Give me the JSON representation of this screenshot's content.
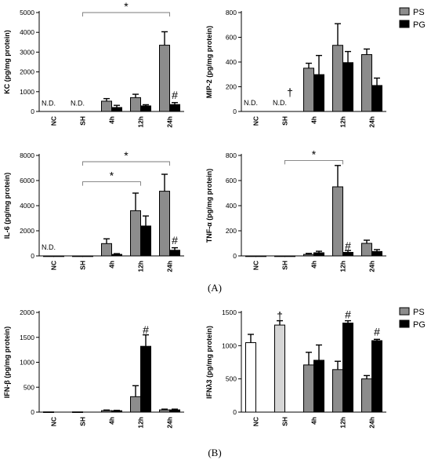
{
  "panel_labels": [
    "(A)",
    "(B)"
  ],
  "colors": {
    "PS": "#8c8c8c",
    "PG": "#000000",
    "NC": "#ffffff",
    "SH": "#d6d6d6"
  },
  "chart_data": [
    {
      "type": "bar",
      "id": "kc",
      "categories": [
        "NC",
        "SH",
        "4h",
        "12h",
        "24h"
      ],
      "ylabel": "KC (pg/mg protein)",
      "ylim": [
        0,
        5000
      ],
      "yticks": [
        0,
        1000,
        2000,
        3000,
        4000,
        5000
      ],
      "series": [
        {
          "key": "PS",
          "values": [
            null,
            null,
            520,
            700,
            3350
          ],
          "errors": [
            null,
            null,
            130,
            170,
            680
          ]
        },
        {
          "key": "PG",
          "values": [
            null,
            null,
            200,
            280,
            350
          ],
          "errors": [
            null,
            null,
            110,
            60,
            100
          ]
        }
      ],
      "annotations": [
        {
          "category": "NC",
          "series": "PS",
          "text": "N.D.",
          "y": 300
        },
        {
          "category": "SH",
          "series": "PS",
          "text": "N.D.",
          "y": 300
        },
        {
          "category": "24h",
          "series": "PG",
          "text": "#",
          "y": 800
        }
      ],
      "brackets": [
        {
          "from": "SH",
          "to": "24h",
          "y": 5000,
          "text": "*"
        }
      ]
    },
    {
      "type": "bar",
      "id": "mip2",
      "categories": [
        "NC",
        "SH",
        "4h",
        "12h",
        "24h"
      ],
      "ylabel": "MIP-2 (pg/mg protein)",
      "ylim": [
        0,
        800
      ],
      "yticks": [
        0,
        200,
        400,
        600,
        800
      ],
      "series": [
        {
          "key": "PS",
          "values": [
            null,
            null,
            350,
            535,
            460
          ],
          "errors": [
            null,
            null,
            40,
            175,
            45
          ]
        },
        {
          "key": "PG",
          "values": [
            null,
            null,
            298,
            395,
            210
          ],
          "errors": [
            null,
            null,
            155,
            90,
            60
          ]
        }
      ],
      "annotations": [
        {
          "category": "NC",
          "series": "PS",
          "text": "N.D.",
          "y": 50
        },
        {
          "category": "SH",
          "series": "PS",
          "text": "N.D.",
          "y": 50
        },
        {
          "category": "SH",
          "series": "PG",
          "text": "†",
          "y": 150
        }
      ],
      "brackets": []
    },
    {
      "type": "bar",
      "id": "il6",
      "categories": [
        "NC",
        "SH",
        "4h",
        "12h",
        "24h"
      ],
      "ylabel": "IL-6 (pg/mg protein)",
      "ylim": [
        0,
        8000
      ],
      "yticks": [
        0,
        2000,
        4000,
        6000,
        8000
      ],
      "series": [
        {
          "key": "PS",
          "values": [
            0,
            0,
            980,
            3600,
            5150
          ],
          "errors": [
            null,
            null,
            380,
            1400,
            1350
          ]
        },
        {
          "key": "PG",
          "values": [
            0,
            0,
            120,
            2380,
            450
          ],
          "errors": [
            null,
            null,
            60,
            800,
            200
          ]
        }
      ],
      "annotations": [
        {
          "category": "NC",
          "series": "PS",
          "text": "N.D.",
          "y": 500
        },
        {
          "category": "24h",
          "series": "PG",
          "text": "#",
          "y": 1200
        }
      ],
      "brackets": [
        {
          "from": "SH",
          "to": "24h",
          "y": 7500,
          "text": "*"
        },
        {
          "from": "SH",
          "to": "12h",
          "y": 5900,
          "text": "*"
        }
      ]
    },
    {
      "type": "bar",
      "id": "tnf",
      "categories": [
        "NC",
        "SH",
        "4h",
        "12h",
        "24h"
      ],
      "ylabel": "TNF-α (pg/mg protein)",
      "ylim": [
        0,
        800
      ],
      "yticks": [
        0,
        200,
        400,
        600,
        800
      ],
      "series": [
        {
          "key": "PS",
          "values": [
            0,
            0,
            12,
            550,
            100
          ],
          "errors": [
            null,
            null,
            8,
            170,
            25
          ]
        },
        {
          "key": "PG",
          "values": [
            0,
            0,
            25,
            28,
            35
          ],
          "errors": [
            null,
            null,
            12,
            15,
            15
          ]
        }
      ],
      "annotations": [
        {
          "category": "12h",
          "series": "PG",
          "text": "#",
          "y": 75
        }
      ],
      "brackets": [
        {
          "from": "SH",
          "to": "12h",
          "y": 760,
          "text": "*"
        }
      ]
    },
    {
      "type": "bar",
      "id": "ifnb",
      "categories": [
        "NC",
        "SH",
        "4h",
        "12h",
        "24h"
      ],
      "ylabel": "IFN-β (pg/mg protein)",
      "ylim": [
        0,
        2000
      ],
      "yticks": [
        0,
        500,
        1000,
        1500,
        2000
      ],
      "series": [
        {
          "key": "PS",
          "values": [
            5,
            5,
            30,
            310,
            45
          ],
          "errors": [
            null,
            null,
            12,
            220,
            15
          ]
        },
        {
          "key": "PG",
          "values": [
            null,
            null,
            28,
            1320,
            45
          ],
          "errors": [
            null,
            null,
            8,
            230,
            15
          ]
        }
      ],
      "annotations": [
        {
          "category": "12h",
          "series": "PG",
          "text": "#",
          "y": 1640
        }
      ],
      "brackets": []
    },
    {
      "type": "bar",
      "id": "ifnl3",
      "categories": [
        "NC",
        "SH",
        "4h",
        "12h",
        "24h"
      ],
      "ylabel": "IFNλ3 (pg/mg protein)",
      "ylim": [
        0,
        1500
      ],
      "yticks": [
        0,
        500,
        1000,
        1500
      ],
      "series": [
        {
          "key": "PS",
          "values": [
            1045,
            1310,
            710,
            640,
            500
          ],
          "errors": [
            125,
            65,
            190,
            125,
            50
          ]
        },
        {
          "key": "PG",
          "values": [
            null,
            null,
            780,
            1340,
            1075
          ],
          "errors": [
            null,
            null,
            230,
            35,
            20
          ]
        }
      ],
      "annotations": [
        {
          "category": "SH",
          "series": "PS",
          "text": "†",
          "y": 1440
        },
        {
          "category": "12h",
          "series": "PG",
          "text": "#",
          "y": 1460
        },
        {
          "category": "24h",
          "series": "PG",
          "text": "#",
          "y": 1200
        }
      ],
      "brackets": []
    }
  ],
  "legends": [
    {
      "items": [
        {
          "key": "PS",
          "label": "PS"
        },
        {
          "key": "PG",
          "label": "PG"
        }
      ]
    },
    {
      "items": [
        {
          "key": "PS",
          "label": "PS"
        },
        {
          "key": "PG",
          "label": "PG"
        }
      ]
    }
  ]
}
